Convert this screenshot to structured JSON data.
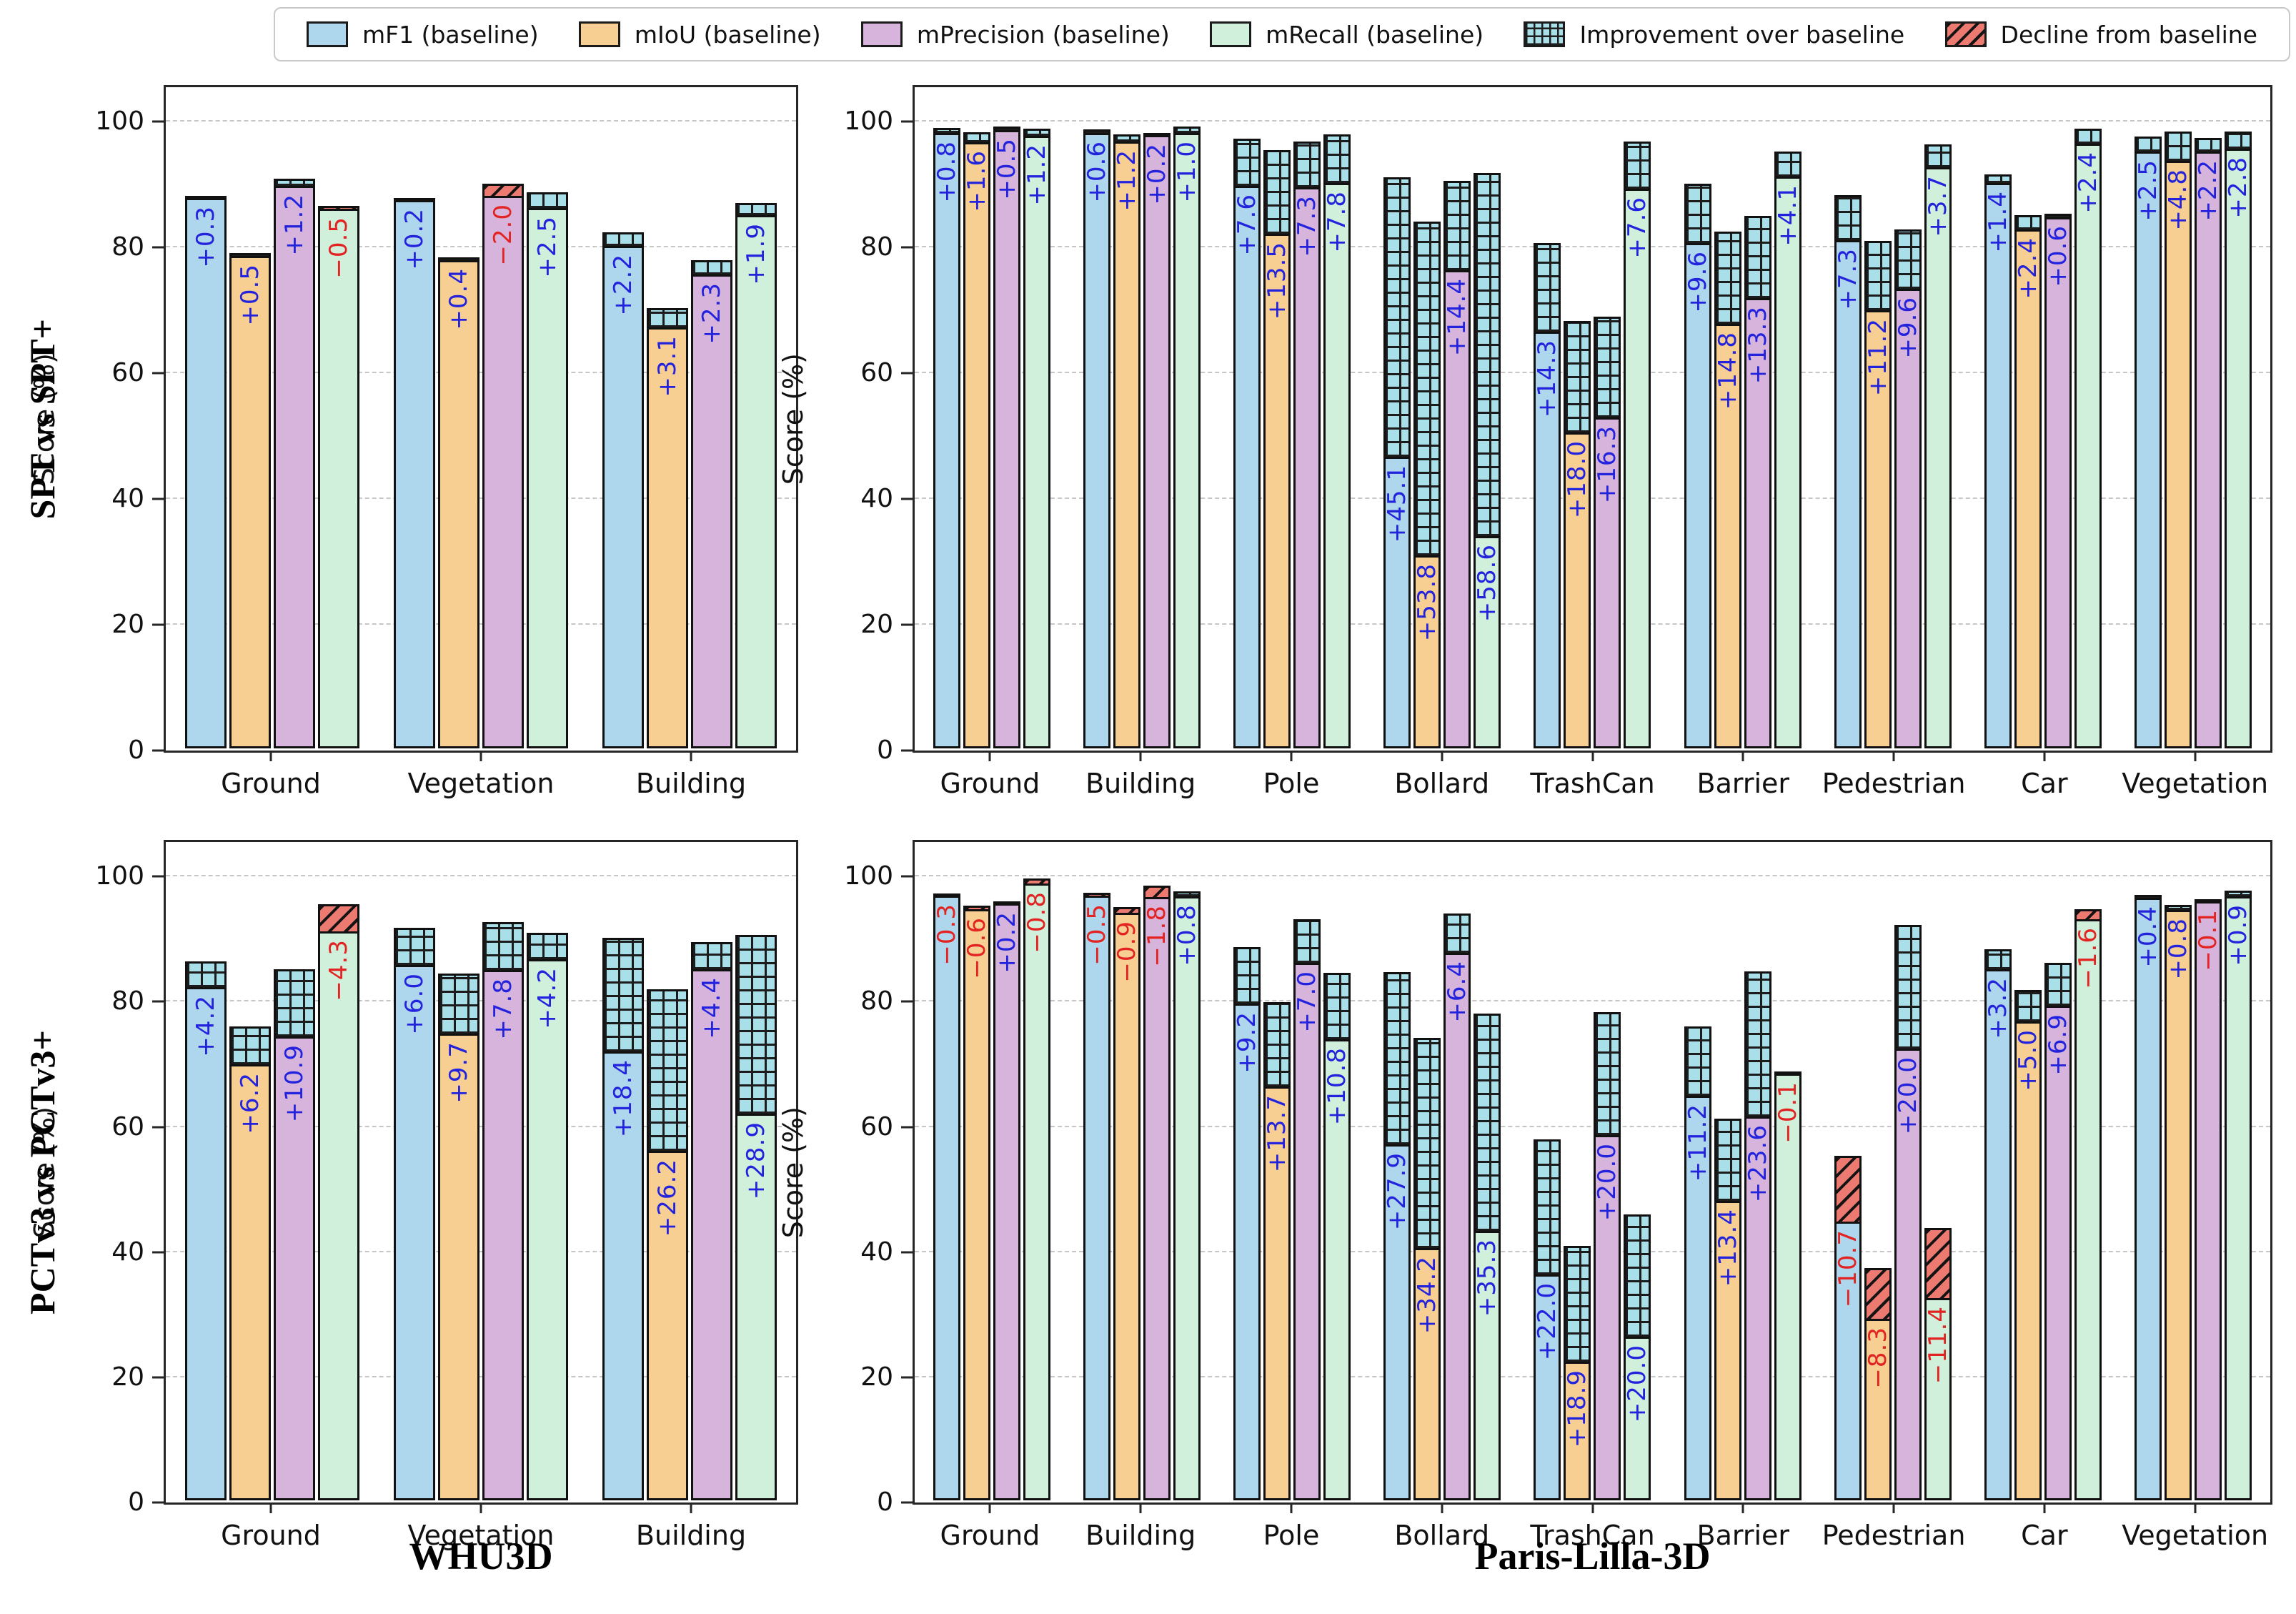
{
  "legend": {
    "items": [
      {
        "label": "mF1 (baseline)",
        "swatch": "mf1"
      },
      {
        "label": "mIoU (baseline)",
        "swatch": "miou"
      },
      {
        "label": "mPrecision (baseline)",
        "swatch": "mprecision"
      },
      {
        "label": "mRecall (baseline)",
        "swatch": "mrecall"
      },
      {
        "label": "Improvement over baseline",
        "swatch": "improvement"
      },
      {
        "label": "Decline from baseline",
        "swatch": "decline"
      }
    ]
  },
  "ylabel": "Score (%)",
  "row_labels": [
    "SPT vs SPT+",
    "PCTv3 vs PCTv3+"
  ],
  "col_titles": [
    "WHU3D",
    "Paris-Lilla-3D"
  ],
  "colors": {
    "mf1": "#aed6ec",
    "miou": "#f8cf92",
    "mprecision": "#d7b4dc",
    "mrecall": "#d0f0db",
    "improvement_fill": "#a9dfe8",
    "decline_fill": "#ed7a70",
    "bar_edge": "#111111",
    "grid": "#c6c6c6",
    "delta_positive": "#2323dd",
    "delta_negative": "#e32222"
  },
  "chart_data": [
    {
      "type": "bar",
      "row_label": "SPT vs SPT+",
      "dataset": "WHU3D",
      "ylabel": "Score (%)",
      "yticks": [
        0,
        20,
        40,
        60,
        80,
        100
      ],
      "ylim": [
        0,
        105.5
      ],
      "grid": true,
      "series": [
        "mF1",
        "mIoU",
        "mPrecision",
        "mRecall"
      ],
      "categories": [
        "Ground",
        "Vegetation",
        "Building"
      ],
      "bars": [
        [
          {
            "baseline": 88.2,
            "delta": 0.3
          },
          {
            "baseline": 78.8,
            "delta": 0.5
          },
          {
            "baseline": 90.0,
            "delta": 1.2
          },
          {
            "baseline": 86.9,
            "delta": -0.5
          }
        ],
        [
          {
            "baseline": 87.9,
            "delta": 0.2
          },
          {
            "baseline": 78.2,
            "delta": 0.4
          },
          {
            "baseline": 90.4,
            "delta": -2.0
          },
          {
            "baseline": 86.5,
            "delta": 2.5
          }
        ],
        [
          {
            "baseline": 80.4,
            "delta": 2.2
          },
          {
            "baseline": 67.4,
            "delta": 3.1
          },
          {
            "baseline": 75.9,
            "delta": 2.3
          },
          {
            "baseline": 85.4,
            "delta": 1.9
          }
        ]
      ]
    },
    {
      "type": "bar",
      "row_label": "SPT vs SPT+",
      "dataset": "Paris-Lilla-3D",
      "ylabel": "Score (%)",
      "yticks": [
        0,
        20,
        40,
        60,
        80,
        100
      ],
      "ylim": [
        0,
        105.5
      ],
      "grid": true,
      "series": [
        "mF1",
        "mIoU",
        "mPrecision",
        "mRecall"
      ],
      "categories": [
        "Ground",
        "Building",
        "Pole",
        "Bollard",
        "TrashCan",
        "Barrier",
        "Pedestrian",
        "Car",
        "Vegetation"
      ],
      "bars": [
        [
          {
            "baseline": 98.5,
            "delta": 0.8
          },
          {
            "baseline": 97.0,
            "delta": 1.6
          },
          {
            "baseline": 99.0,
            "delta": 0.5
          },
          {
            "baseline": 98.0,
            "delta": 1.2
          }
        ],
        [
          {
            "baseline": 98.5,
            "delta": 0.6
          },
          {
            "baseline": 97.1,
            "delta": 1.2
          },
          {
            "baseline": 98.3,
            "delta": 0.2
          },
          {
            "baseline": 98.5,
            "delta": 1.0
          }
        ],
        [
          {
            "baseline": 90.0,
            "delta": 7.6
          },
          {
            "baseline": 82.3,
            "delta": 13.5
          },
          {
            "baseline": 89.8,
            "delta": 7.3
          },
          {
            "baseline": 90.5,
            "delta": 7.8
          }
        ],
        [
          {
            "baseline": 46.3,
            "delta": 45.1
          },
          {
            "baseline": 30.5,
            "delta": 53.8
          },
          {
            "baseline": 76.5,
            "delta": 14.4
          },
          {
            "baseline": 33.5,
            "delta": 58.6
          }
        ],
        [
          {
            "baseline": 66.6,
            "delta": 14.3
          },
          {
            "baseline": 50.4,
            "delta": 18.0
          },
          {
            "baseline": 52.8,
            "delta": 16.3
          },
          {
            "baseline": 89.5,
            "delta": 7.6
          }
        ],
        [
          {
            "baseline": 80.8,
            "delta": 9.6
          },
          {
            "baseline": 67.9,
            "delta": 14.8
          },
          {
            "baseline": 72.0,
            "delta": 13.3
          },
          {
            "baseline": 91.5,
            "delta": 4.1
          }
        ],
        [
          {
            "baseline": 81.3,
            "delta": 7.3
          },
          {
            "baseline": 70.0,
            "delta": 11.2
          },
          {
            "baseline": 73.5,
            "delta": 9.6
          },
          {
            "baseline": 93.0,
            "delta": 3.7
          }
        ],
        [
          {
            "baseline": 90.5,
            "delta": 1.4
          },
          {
            "baseline": 83.0,
            "delta": 2.4
          },
          {
            "baseline": 85.0,
            "delta": 0.6
          },
          {
            "baseline": 96.8,
            "delta": 2.4
          }
        ],
        [
          {
            "baseline": 95.5,
            "delta": 2.5
          },
          {
            "baseline": 94.0,
            "delta": 4.8
          },
          {
            "baseline": 95.5,
            "delta": 2.2
          },
          {
            "baseline": 96.0,
            "delta": 2.8
          }
        ]
      ]
    },
    {
      "type": "bar",
      "row_label": "PCTv3 vs PCTv3+",
      "dataset": "WHU3D",
      "ylabel": "Score (%)",
      "yticks": [
        0,
        20,
        40,
        60,
        80,
        100
      ],
      "ylim": [
        0,
        105.5
      ],
      "grid": true,
      "series": [
        "mF1",
        "mIoU",
        "mPrecision",
        "mRecall"
      ],
      "categories": [
        "Ground",
        "Vegetation",
        "Building"
      ],
      "bars": [
        [
          {
            "baseline": 82.5,
            "delta": 4.2
          },
          {
            "baseline": 70.0,
            "delta": 6.2
          },
          {
            "baseline": 74.5,
            "delta": 10.9
          },
          {
            "baseline": 95.8,
            "delta": -4.3
          }
        ],
        [
          {
            "baseline": 86.0,
            "delta": 6.0
          },
          {
            "baseline": 75.0,
            "delta": 9.7
          },
          {
            "baseline": 85.2,
            "delta": 7.8
          },
          {
            "baseline": 87.0,
            "delta": 4.2
          }
        ],
        [
          {
            "baseline": 72.0,
            "delta": 18.4
          },
          {
            "baseline": 56.0,
            "delta": 26.2
          },
          {
            "baseline": 85.3,
            "delta": 4.4
          },
          {
            "baseline": 62.0,
            "delta": 28.9
          }
        ]
      ]
    },
    {
      "type": "bar",
      "row_label": "PCTv3 vs PCTv3+",
      "dataset": "Paris-Lilla-3D",
      "ylabel": "Score (%)",
      "yticks": [
        0,
        20,
        40,
        60,
        80,
        100
      ],
      "ylim": [
        0,
        105.5
      ],
      "grid": true,
      "series": [
        "mF1",
        "mIoU",
        "mPrecision",
        "mRecall"
      ],
      "categories": [
        "Ground",
        "Building",
        "Pole",
        "Bollard",
        "TrashCan",
        "Barrier",
        "Pedestrian",
        "Car",
        "Vegetation"
      ],
      "bars": [
        [
          {
            "baseline": 97.6,
            "delta": -0.3
          },
          {
            "baseline": 95.6,
            "delta": -0.6
          },
          {
            "baseline": 96.1,
            "delta": 0.2
          },
          {
            "baseline": 100.0,
            "delta": -0.8
          }
        ],
        [
          {
            "baseline": 97.7,
            "delta": -0.5
          },
          {
            "baseline": 95.4,
            "delta": -0.9
          },
          {
            "baseline": 98.8,
            "delta": -1.8
          },
          {
            "baseline": 97.1,
            "delta": 0.8
          }
        ],
        [
          {
            "baseline": 79.8,
            "delta": 9.2
          },
          {
            "baseline": 66.4,
            "delta": 13.7
          },
          {
            "baseline": 86.4,
            "delta": 7.0
          },
          {
            "baseline": 74.0,
            "delta": 10.8
          }
        ],
        [
          {
            "baseline": 57.0,
            "delta": 27.9
          },
          {
            "baseline": 40.2,
            "delta": 34.2
          },
          {
            "baseline": 88.0,
            "delta": 6.4
          },
          {
            "baseline": 43.0,
            "delta": 35.3
          }
        ],
        [
          {
            "baseline": 36.0,
            "delta": 22.0
          },
          {
            "baseline": 22.0,
            "delta": 18.9
          },
          {
            "baseline": 58.5,
            "delta": 20.0
          },
          {
            "baseline": 26.0,
            "delta": 20.0
          }
        ],
        [
          {
            "baseline": 65.0,
            "delta": 11.2
          },
          {
            "baseline": 48.0,
            "delta": 13.4
          },
          {
            "baseline": 61.5,
            "delta": 23.6
          },
          {
            "baseline": 69.0,
            "delta": -0.1
          }
        ],
        [
          {
            "baseline": 55.4,
            "delta": -10.7
          },
          {
            "baseline": 37.3,
            "delta": -8.3
          },
          {
            "baseline": 72.5,
            "delta": 20.0
          },
          {
            "baseline": 43.8,
            "delta": -11.4
          }
        ],
        [
          {
            "baseline": 85.4,
            "delta": 3.2
          },
          {
            "baseline": 77.0,
            "delta": 5.0
          },
          {
            "baseline": 79.5,
            "delta": 6.9
          },
          {
            "baseline": 95.0,
            "delta": -1.6
          }
        ],
        [
          {
            "baseline": 96.9,
            "delta": 0.4
          },
          {
            "baseline": 94.9,
            "delta": 0.8
          },
          {
            "baseline": 96.6,
            "delta": -0.1
          },
          {
            "baseline": 97.1,
            "delta": 0.9
          }
        ]
      ]
    }
  ]
}
